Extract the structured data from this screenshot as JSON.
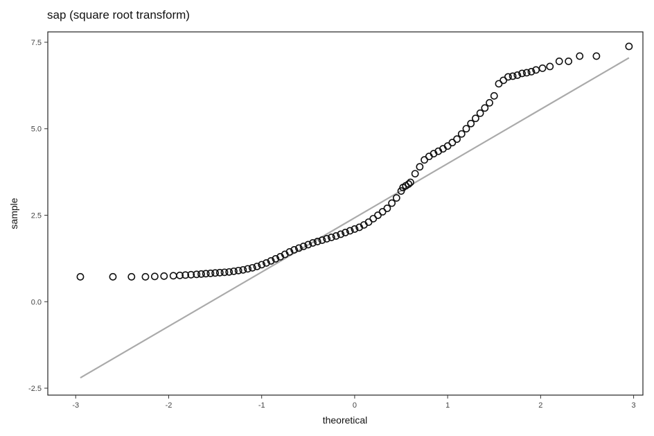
{
  "chart_data": {
    "type": "scatter",
    "title": "sap (square root transform)",
    "xlabel": "theoretical",
    "ylabel": "sample",
    "xlim": [
      -3.3,
      3.1
    ],
    "ylim": [
      -2.7,
      7.8
    ],
    "xticks": [
      -3,
      -2,
      -1,
      0,
      1,
      2,
      3
    ],
    "xtick_labels": [
      "-3",
      "-2",
      "-1",
      "0",
      "1",
      "2",
      "3"
    ],
    "yticks": [
      -2.5,
      0.0,
      2.5,
      5.0,
      7.5
    ],
    "ytick_labels": [
      "-2.5",
      "0.0",
      "2.5",
      "5.0",
      "7.5"
    ],
    "grid": false,
    "reference_line": {
      "x": [
        -2.95,
        2.95
      ],
      "y": [
        -2.2,
        7.05
      ],
      "color": "#aaaaaa"
    },
    "points": {
      "x": [
        -2.95,
        -2.6,
        -2.4,
        -2.25,
        -2.15,
        -2.05,
        -1.95,
        -1.88,
        -1.82,
        -1.76,
        -1.7,
        -1.65,
        -1.6,
        -1.55,
        -1.5,
        -1.45,
        -1.4,
        -1.35,
        -1.3,
        -1.25,
        -1.2,
        -1.15,
        -1.1,
        -1.05,
        -1.0,
        -0.95,
        -0.9,
        -0.85,
        -0.8,
        -0.75,
        -0.7,
        -0.65,
        -0.6,
        -0.55,
        -0.5,
        -0.45,
        -0.4,
        -0.35,
        -0.3,
        -0.25,
        -0.2,
        -0.15,
        -0.1,
        -0.05,
        0.0,
        0.05,
        0.1,
        0.15,
        0.2,
        0.25,
        0.3,
        0.35,
        0.4,
        0.45,
        0.5,
        0.52,
        0.55,
        0.58,
        0.6,
        0.65,
        0.7,
        0.75,
        0.8,
        0.85,
        0.9,
        0.95,
        1.0,
        1.05,
        1.1,
        1.15,
        1.2,
        1.25,
        1.3,
        1.35,
        1.4,
        1.45,
        1.5,
        1.55,
        1.6,
        1.65,
        1.7,
        1.75,
        1.8,
        1.85,
        1.9,
        1.95,
        2.02,
        2.1,
        2.2,
        2.3,
        2.42,
        2.6,
        2.95
      ],
      "y": [
        0.72,
        0.72,
        0.72,
        0.72,
        0.73,
        0.74,
        0.75,
        0.76,
        0.77,
        0.78,
        0.79,
        0.8,
        0.81,
        0.82,
        0.83,
        0.84,
        0.85,
        0.86,
        0.88,
        0.9,
        0.92,
        0.95,
        0.98,
        1.02,
        1.07,
        1.12,
        1.18,
        1.24,
        1.3,
        1.37,
        1.44,
        1.5,
        1.55,
        1.6,
        1.65,
        1.7,
        1.74,
        1.78,
        1.82,
        1.86,
        1.9,
        1.95,
        2.0,
        2.05,
        2.1,
        2.15,
        2.22,
        2.3,
        2.4,
        2.5,
        2.6,
        2.7,
        2.85,
        3.0,
        3.2,
        3.3,
        3.35,
        3.4,
        3.45,
        3.7,
        3.9,
        4.1,
        4.2,
        4.28,
        4.35,
        4.42,
        4.5,
        4.6,
        4.7,
        4.85,
        5.0,
        5.15,
        5.3,
        5.45,
        5.6,
        5.75,
        5.95,
        6.3,
        6.4,
        6.5,
        6.52,
        6.55,
        6.6,
        6.62,
        6.65,
        6.7,
        6.75,
        6.8,
        6.95,
        6.95,
        7.1,
        7.1,
        7.38
      ]
    },
    "point_style": {
      "marker": "open-circle",
      "color": "#111111"
    }
  }
}
